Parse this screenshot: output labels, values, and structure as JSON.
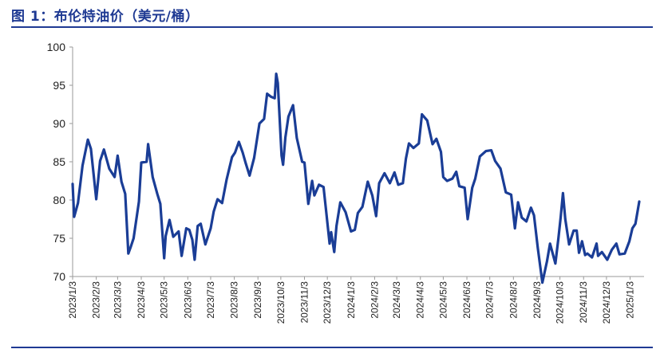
{
  "header": {
    "title": "图 1：布伦特油价（美元/桶）"
  },
  "colors": {
    "accent": "#1f3a93",
    "series": "#1a3d96"
  },
  "chart_data": {
    "type": "line",
    "ylim": [
      70,
      100
    ],
    "yticks": [
      70,
      75,
      80,
      85,
      90,
      95,
      100
    ],
    "xlim": [
      "2023-01-03",
      "2025-01-15"
    ],
    "xticks": [
      "2023-01-03",
      "2023-02-03",
      "2023-03-03",
      "2023-04-03",
      "2023-05-03",
      "2023-06-03",
      "2023-07-03",
      "2023-08-03",
      "2023-09-03",
      "2023-10-03",
      "2023-11-03",
      "2023-12-03",
      "2024-01-03",
      "2024-02-03",
      "2024-03-03",
      "2024-04-03",
      "2024-05-03",
      "2024-06-03",
      "2024-07-03",
      "2024-08-03",
      "2024-09-03",
      "2024-10-03",
      "2024-11-03",
      "2024-12-03",
      "2025-01-03"
    ],
    "xtick_labels": [
      "2023/1/3",
      "2023/2/3",
      "2023/3/3",
      "2023/4/3",
      "2023/5/3",
      "2023/6/3",
      "2023/7/3",
      "2023/8/3",
      "2023/9/3",
      "2023/10/3",
      "2023/11/3",
      "2023/12/3",
      "2024/1/3",
      "2024/2/3",
      "2024/3/3",
      "2024/4/3",
      "2024/5/3",
      "2024/6/3",
      "2024/7/3",
      "2024/8/3",
      "2024/9/3",
      "2024/10/3",
      "2024/11/3",
      "2024/12/3",
      "2025/1/3"
    ],
    "grid": false,
    "series": [
      {
        "x": [
          "2023-01-03",
          "2023-01-05",
          "2023-01-10",
          "2023-01-16",
          "2023-01-23",
          "2023-01-27",
          "2023-02-03",
          "2023-02-08",
          "2023-02-13",
          "2023-02-20",
          "2023-02-27",
          "2023-03-03",
          "2023-03-08",
          "2023-03-13",
          "2023-03-17",
          "2023-03-20",
          "2023-03-24",
          "2023-03-31",
          "2023-04-03",
          "2023-04-10",
          "2023-04-12",
          "2023-04-18",
          "2023-04-24",
          "2023-04-28",
          "2023-05-03",
          "2023-05-05",
          "2023-05-10",
          "2023-05-15",
          "2023-05-22",
          "2023-05-26",
          "2023-06-01",
          "2023-06-05",
          "2023-06-09",
          "2023-06-12",
          "2023-06-16",
          "2023-06-20",
          "2023-06-26",
          "2023-06-30",
          "2023-07-03",
          "2023-07-07",
          "2023-07-12",
          "2023-07-18",
          "2023-07-24",
          "2023-07-31",
          "2023-08-04",
          "2023-08-09",
          "2023-08-14",
          "2023-08-18",
          "2023-08-23",
          "2023-08-29",
          "2023-09-05",
          "2023-09-11",
          "2023-09-15",
          "2023-09-20",
          "2023-09-25",
          "2023-09-27",
          "2023-09-29",
          "2023-10-04",
          "2023-10-06",
          "2023-10-09",
          "2023-10-13",
          "2023-10-19",
          "2023-10-24",
          "2023-10-31",
          "2023-11-03",
          "2023-11-08",
          "2023-11-13",
          "2023-11-16",
          "2023-11-22",
          "2023-11-28",
          "2023-12-01",
          "2023-12-06",
          "2023-12-08",
          "2023-12-12",
          "2023-12-15",
          "2023-12-20",
          "2023-12-27",
          "2024-01-03",
          "2024-01-08",
          "2024-01-12",
          "2024-01-18",
          "2024-01-25",
          "2024-01-31",
          "2024-02-05",
          "2024-02-09",
          "2024-02-16",
          "2024-02-23",
          "2024-02-29",
          "2024-03-05",
          "2024-03-11",
          "2024-03-15",
          "2024-03-19",
          "2024-03-25",
          "2024-04-01",
          "2024-04-05",
          "2024-04-12",
          "2024-04-19",
          "2024-04-24",
          "2024-04-30",
          "2024-05-03",
          "2024-05-08",
          "2024-05-15",
          "2024-05-20",
          "2024-05-24",
          "2024-05-31",
          "2024-06-04",
          "2024-06-10",
          "2024-06-14",
          "2024-06-20",
          "2024-06-28",
          "2024-07-05",
          "2024-07-10",
          "2024-07-17",
          "2024-07-24",
          "2024-07-31",
          "2024-08-05",
          "2024-08-09",
          "2024-08-14",
          "2024-08-20",
          "2024-08-26",
          "2024-08-30",
          "2024-09-04",
          "2024-09-10",
          "2024-09-16",
          "2024-09-20",
          "2024-09-27",
          "2024-10-01",
          "2024-10-04",
          "2024-10-07",
          "2024-10-10",
          "2024-10-15",
          "2024-10-21",
          "2024-10-25",
          "2024-10-28",
          "2024-11-01",
          "2024-11-05",
          "2024-11-08",
          "2024-11-14",
          "2024-11-20",
          "2024-11-22",
          "2024-11-27",
          "2024-12-04",
          "2024-12-10",
          "2024-12-16",
          "2024-12-20",
          "2024-12-27",
          "2025-01-02",
          "2025-01-06",
          "2025-01-10",
          "2025-01-15"
        ],
        "y": [
          82.1,
          77.8,
          79.6,
          84.5,
          87.9,
          86.7,
          80.1,
          85.1,
          86.6,
          84.1,
          83.0,
          85.8,
          82.4,
          80.8,
          73.0,
          73.8,
          75.0,
          79.8,
          84.9,
          85.0,
          87.3,
          83.0,
          80.8,
          79.5,
          72.4,
          75.3,
          77.4,
          75.2,
          75.9,
          72.7,
          76.3,
          76.1,
          74.8,
          72.2,
          76.6,
          76.9,
          74.2,
          75.4,
          76.3,
          78.5,
          80.1,
          79.6,
          82.7,
          85.6,
          86.2,
          87.6,
          86.2,
          84.8,
          83.2,
          85.5,
          90.0,
          90.6,
          93.9,
          93.5,
          93.3,
          96.5,
          95.3,
          85.8,
          84.6,
          88.2,
          90.9,
          92.4,
          88.1,
          85.0,
          84.9,
          79.5,
          82.5,
          80.6,
          82.0,
          81.7,
          78.9,
          74.3,
          75.8,
          73.2,
          76.6,
          79.7,
          78.4,
          75.9,
          76.1,
          78.3,
          79.1,
          82.4,
          80.6,
          77.9,
          82.2,
          83.5,
          82.2,
          83.6,
          82.0,
          82.2,
          85.4,
          87.4,
          86.8,
          87.4,
          91.2,
          90.4,
          87.3,
          88.0,
          86.3,
          83.0,
          82.5,
          82.8,
          83.7,
          81.8,
          81.6,
          77.5,
          81.6,
          82.8,
          85.7,
          86.4,
          86.5,
          85.1,
          84.1,
          81.0,
          80.7,
          76.3,
          79.7,
          77.7,
          77.2,
          79.0,
          78.0,
          73.7,
          69.2,
          72.0,
          74.3,
          71.7,
          75.0,
          77.8,
          80.9,
          77.5,
          74.2,
          76.0,
          76.0,
          73.1,
          74.6,
          72.8,
          73.0,
          72.5,
          74.3,
          72.7,
          73.2,
          72.2,
          73.5,
          74.3,
          72.9,
          73.0,
          74.6,
          76.3,
          76.9,
          79.8
        ]
      }
    ]
  }
}
